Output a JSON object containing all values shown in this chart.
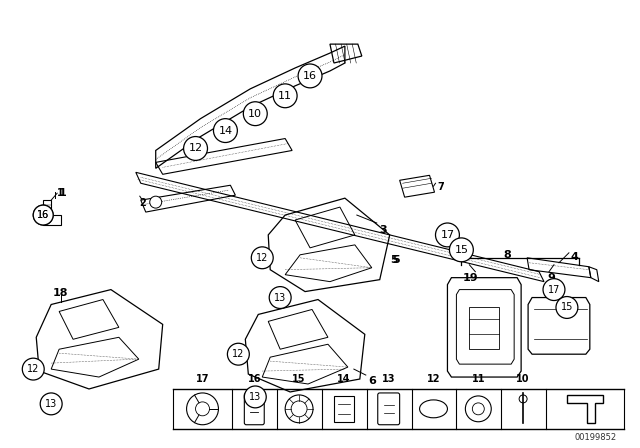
{
  "bg_color": "#ffffff",
  "line_color": "#000000",
  "fig_width": 6.4,
  "fig_height": 4.48,
  "dpi": 100,
  "watermark": "00199852"
}
